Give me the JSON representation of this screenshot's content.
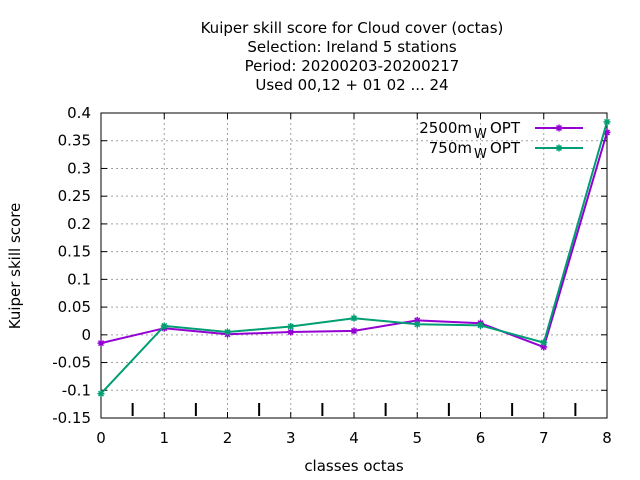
{
  "chart_data": {
    "type": "line",
    "title_lines": [
      "Kuiper skill score  for Cloud cover (octas)",
      "Selection: Ireland      5 stations",
      "Period: 20200203-20200217",
      "Used  00,12  + 01 02 ... 24"
    ],
    "xlabel": "classes octas",
    "ylabel": "Kuiper skill score",
    "x": [
      0,
      1,
      2,
      3,
      4,
      5,
      6,
      7,
      8
    ],
    "xlim": [
      0,
      8
    ],
    "ylim": [
      -0.15,
      0.4
    ],
    "x_ticks": [
      "0",
      "1",
      "2",
      "3",
      "4",
      "5",
      "6",
      "7",
      "8"
    ],
    "y_ticks": [
      "0.4",
      "0.35",
      "0.3",
      "0.25",
      "0.2",
      "0.15",
      "0.1",
      "0.05",
      "0",
      "-0.05",
      "-0.1",
      "-0.15"
    ],
    "grid": true,
    "legend_position": "top-right",
    "series": [
      {
        "name": "2500m",
        "name_sub": "W",
        "name_suffix": "OPT",
        "color": "#9400d3",
        "values": [
          -0.015,
          0.012,
          0.001,
          0.005,
          0.007,
          0.026,
          0.021,
          -0.022,
          0.365
        ]
      },
      {
        "name": "750m",
        "name_sub": "W",
        "name_suffix": "OPT",
        "color": "#009e73",
        "values": [
          -0.106,
          0.016,
          0.005,
          0.015,
          0.03,
          0.019,
          0.017,
          -0.014,
          0.384
        ]
      }
    ],
    "extra_ticks_at": [
      0.5,
      1.5,
      2.5,
      3.5,
      4.5,
      5.5,
      6.5,
      7.5
    ]
  }
}
